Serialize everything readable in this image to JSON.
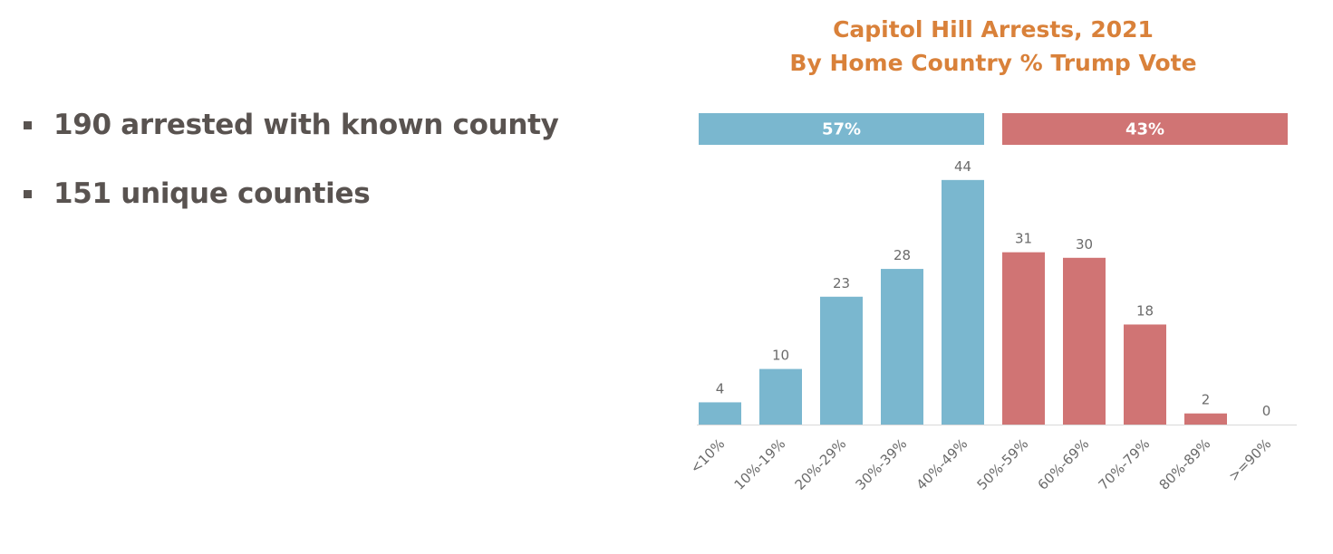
{
  "bullets": [
    "190 arrested with known county",
    "151 unique counties"
  ],
  "colors": {
    "left": "#7ab7cf",
    "right": "#d07474",
    "title": "#d9813a",
    "axis": "#d9d9d9"
  },
  "chart_data": {
    "type": "bar",
    "title": "Capitol Hill Arrests, 2021",
    "subtitle": "By Home Country % Trump Vote",
    "categories": [
      "<10%",
      "10%-19%",
      "20%-29%",
      "30%-39%",
      "40%-49%",
      "50%-59%",
      "60%-69%",
      "70%-79%",
      "80%-89%",
      ">=90%"
    ],
    "values": [
      4,
      10,
      23,
      28,
      44,
      31,
      30,
      18,
      2,
      0
    ],
    "groups": [
      {
        "label": "57%",
        "from": 0,
        "to": 4,
        "color": "#7ab7cf"
      },
      {
        "label": "43%",
        "from": 5,
        "to": 9,
        "color": "#d07474"
      }
    ],
    "xlabel": "",
    "ylabel": "",
    "ylim": [
      0,
      44
    ],
    "grid": false
  }
}
